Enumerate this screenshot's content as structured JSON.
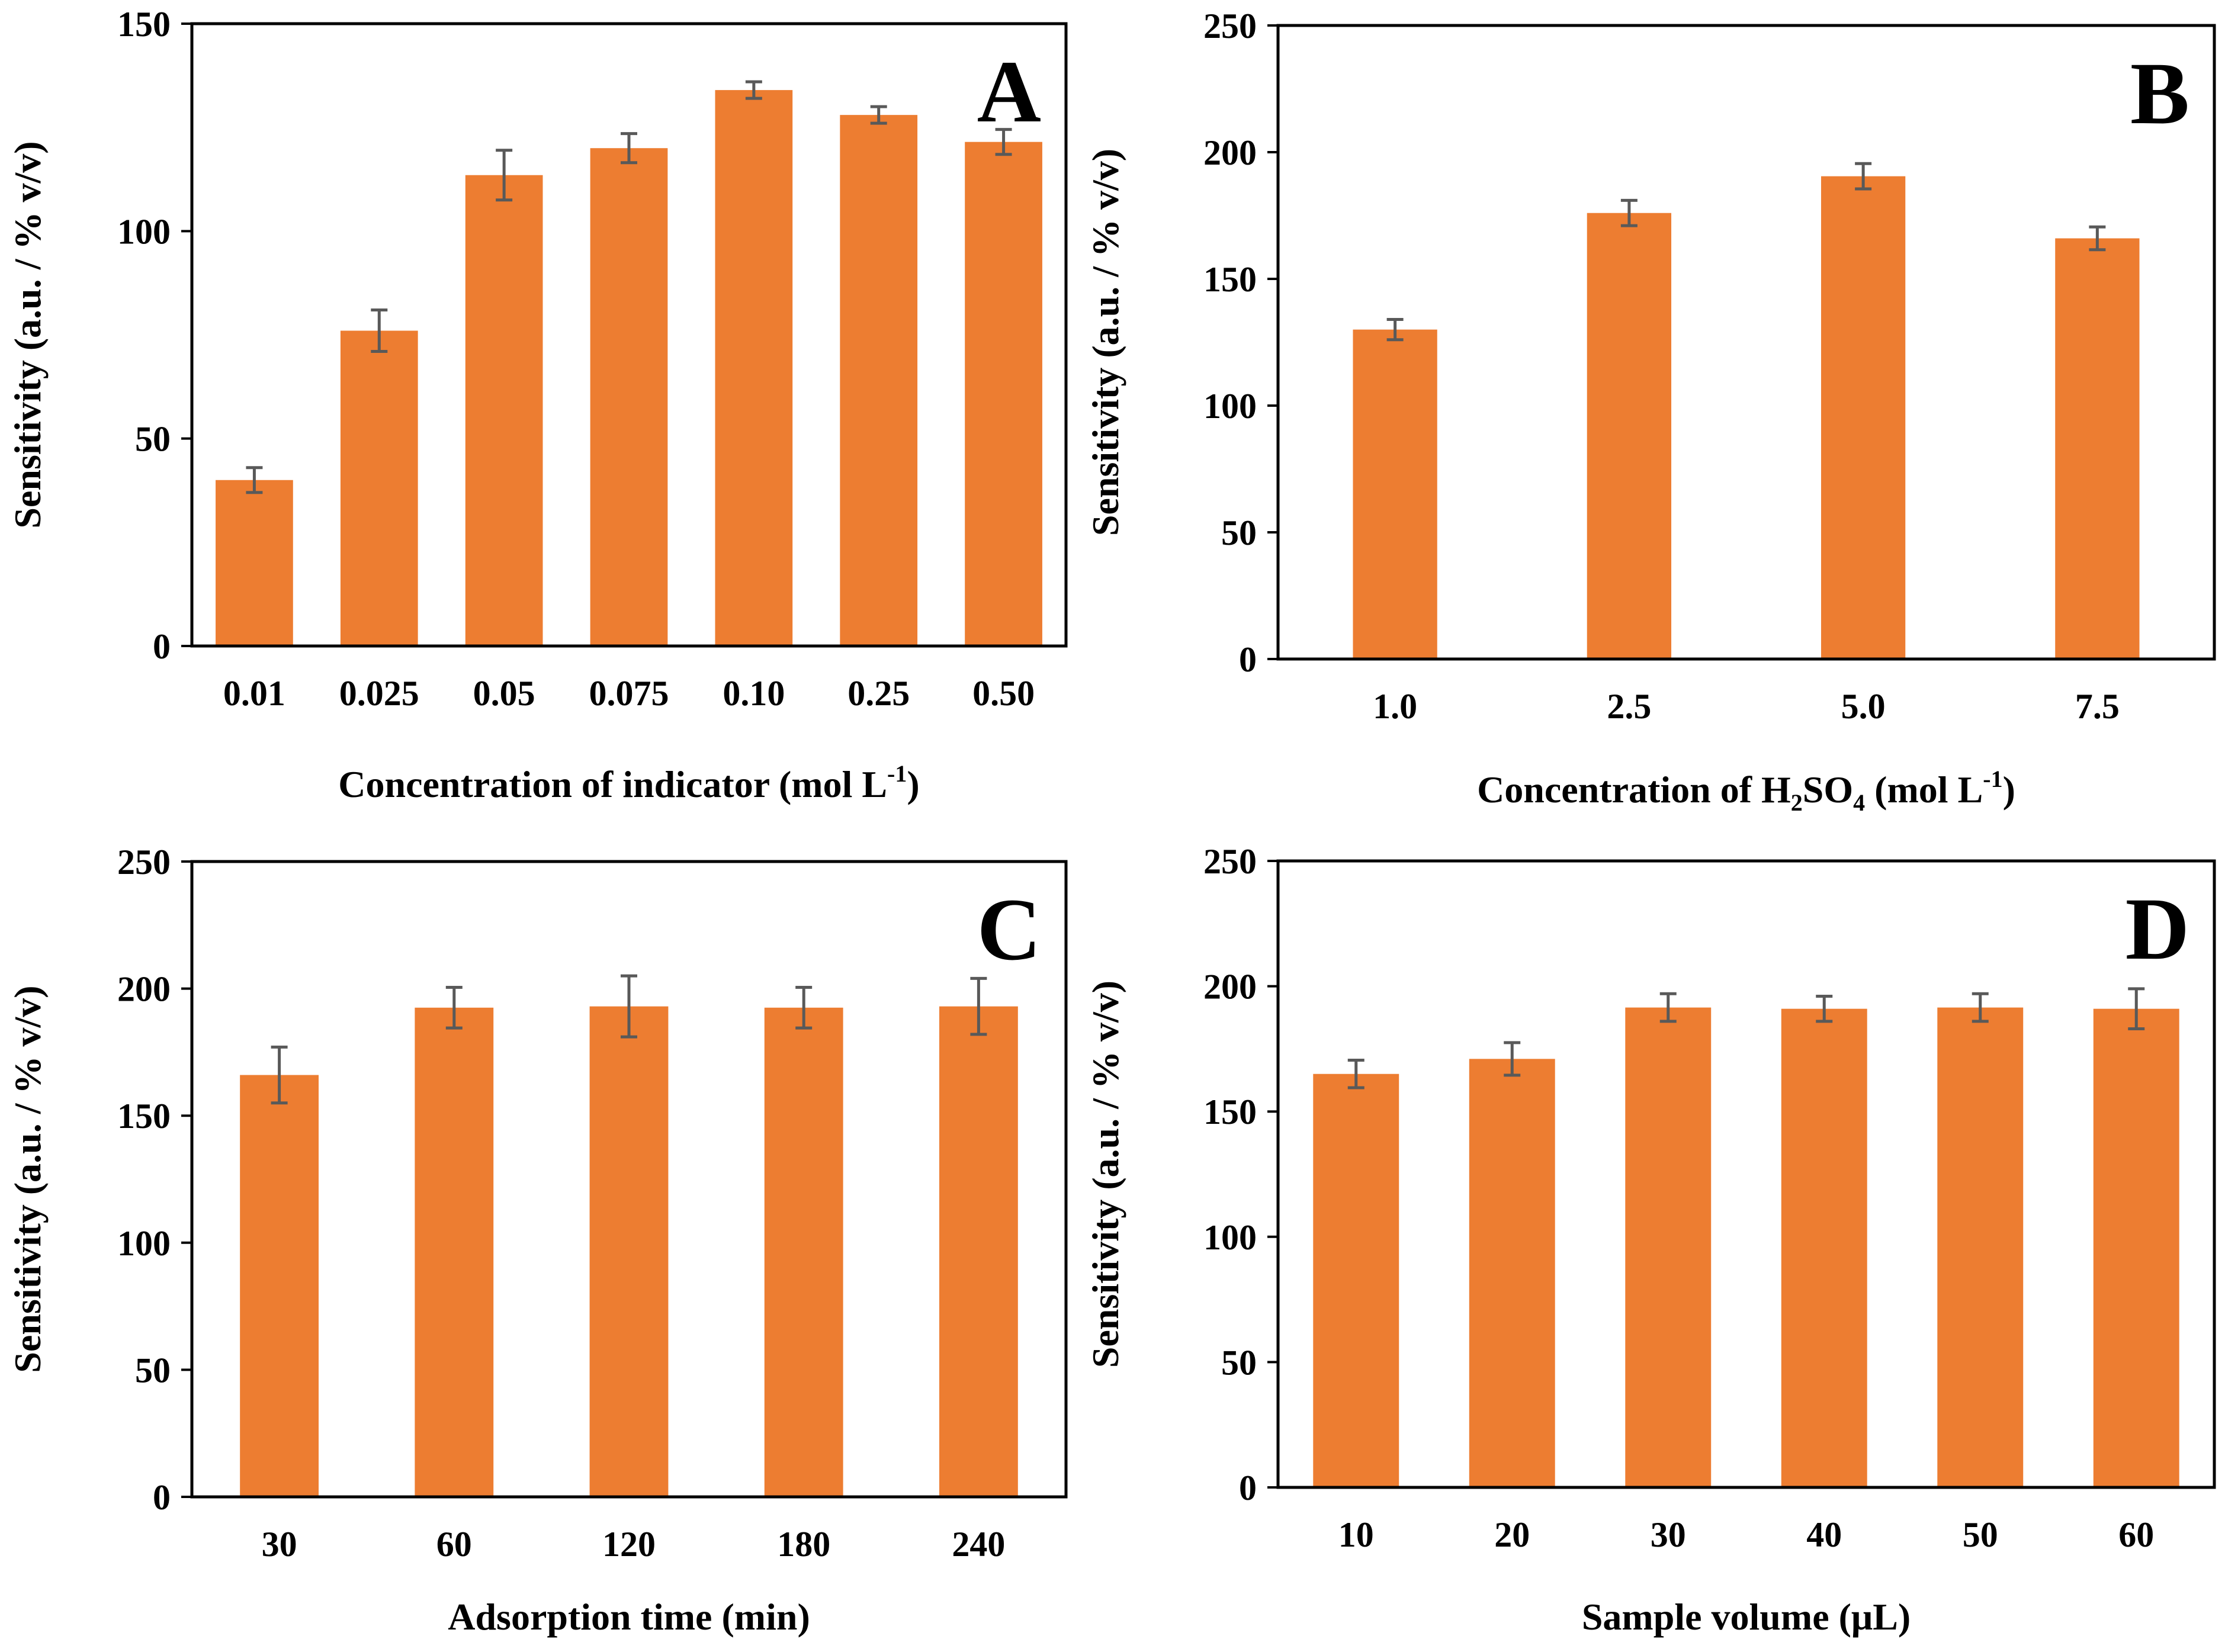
{
  "colors": {
    "bar": "#ED7D31",
    "error_bar": "#595959",
    "axis": "#000000"
  },
  "chart_data": [
    {
      "type": "bar",
      "panel": "A",
      "categories": [
        "0.01",
        "0.025",
        "0.05",
        "0.075",
        "0.10",
        "0.25",
        "0.50"
      ],
      "values": [
        40,
        76,
        113.5,
        120,
        134,
        128,
        121.5
      ],
      "errors": [
        3,
        5,
        6,
        3.5,
        2,
        2,
        3
      ],
      "xlabel": {
        "main": "Concentration of indicator (mol L",
        "sup": "-1",
        "tail": ")"
      },
      "ylabel": "Sensitivity (a.u. / % v/v)",
      "ylim": [
        0,
        150
      ],
      "yticks": [
        "0",
        "50",
        "100",
        "150"
      ],
      "grid": false
    },
    {
      "type": "bar",
      "panel": "B",
      "categories": [
        "1.0",
        "2.5",
        "5.0",
        "7.5"
      ],
      "values": [
        130,
        176,
        190.5,
        166
      ],
      "errors": [
        4,
        5,
        5,
        4.5
      ],
      "xlabel": {
        "main": "Concentration of H",
        "sub1": "2",
        "mid": "SO",
        "sub2": "4",
        "mid2": " (mol L",
        "sup": "-1",
        "tail": ")"
      },
      "ylabel": "Sensitivity (a.u. / % v/v)",
      "ylim": [
        0,
        250
      ],
      "yticks": [
        "0",
        "50",
        "100",
        "150",
        "200",
        "250"
      ],
      "grid": false
    },
    {
      "type": "bar",
      "panel": "C",
      "categories": [
        "30",
        "60",
        "120",
        "180",
        "240"
      ],
      "values": [
        166,
        192.5,
        193,
        192.5,
        193
      ],
      "errors": [
        11,
        8,
        12,
        8,
        11
      ],
      "xlabel": "Adsorption time (min)",
      "ylabel": "Sensitivity (a.u. / % v/v)",
      "ylim": [
        0,
        250
      ],
      "yticks": [
        "0",
        "50",
        "100",
        "150",
        "200",
        "250"
      ],
      "grid": false
    },
    {
      "type": "bar",
      "panel": "D",
      "categories": [
        "10",
        "20",
        "30",
        "40",
        "50",
        "60"
      ],
      "values": [
        165,
        171,
        191.5,
        191,
        191.5,
        191
      ],
      "errors": [
        5.5,
        6.5,
        5.5,
        5,
        5.5,
        8
      ],
      "xlabel": "Sample volume (μL)",
      "ylabel": "Sensitivity (a.u. / % v/v)",
      "ylim": [
        0,
        250
      ],
      "yticks": [
        "0",
        "50",
        "100",
        "150",
        "200",
        "250"
      ],
      "grid": false
    }
  ]
}
